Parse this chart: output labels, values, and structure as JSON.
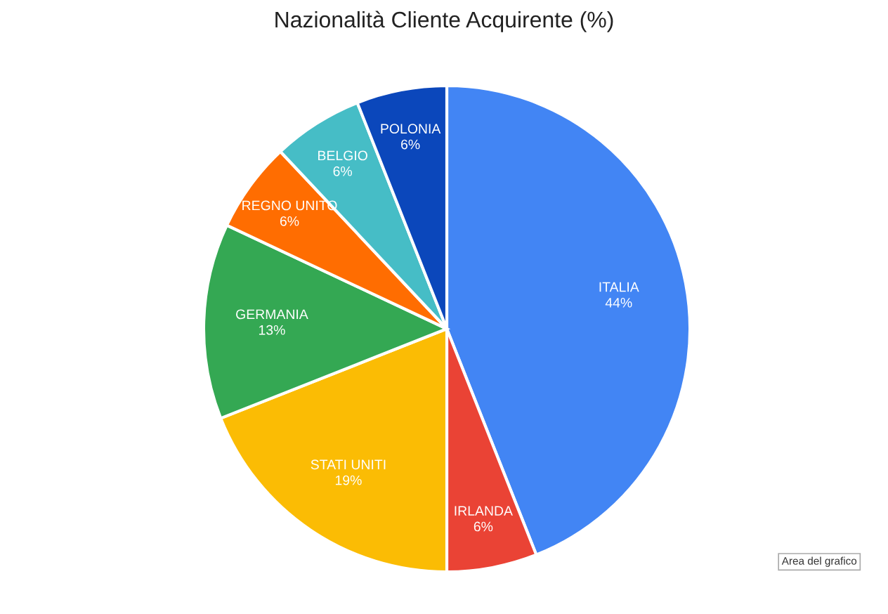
{
  "chart_data": {
    "type": "pie",
    "title": "Nazionalità Cliente Acquirente (%)",
    "categories": [
      "ITALIA",
      "IRLANDA",
      "STATI UNITI",
      "GERMANIA",
      "REGNO UNITO",
      "BELGIO",
      "POLONIA"
    ],
    "values": [
      44,
      6,
      19,
      13,
      6,
      6,
      6
    ],
    "colors": [
      "#4285f4",
      "#ea4335",
      "#fbbc04",
      "#34a853",
      "#ff6d01",
      "#46bdc6",
      "#0b47bb"
    ],
    "value_labels": [
      "44%",
      "6%",
      "19%",
      "13%",
      "6%",
      "6%",
      "6%"
    ],
    "annotations": [
      "Area del grafico"
    ]
  }
}
